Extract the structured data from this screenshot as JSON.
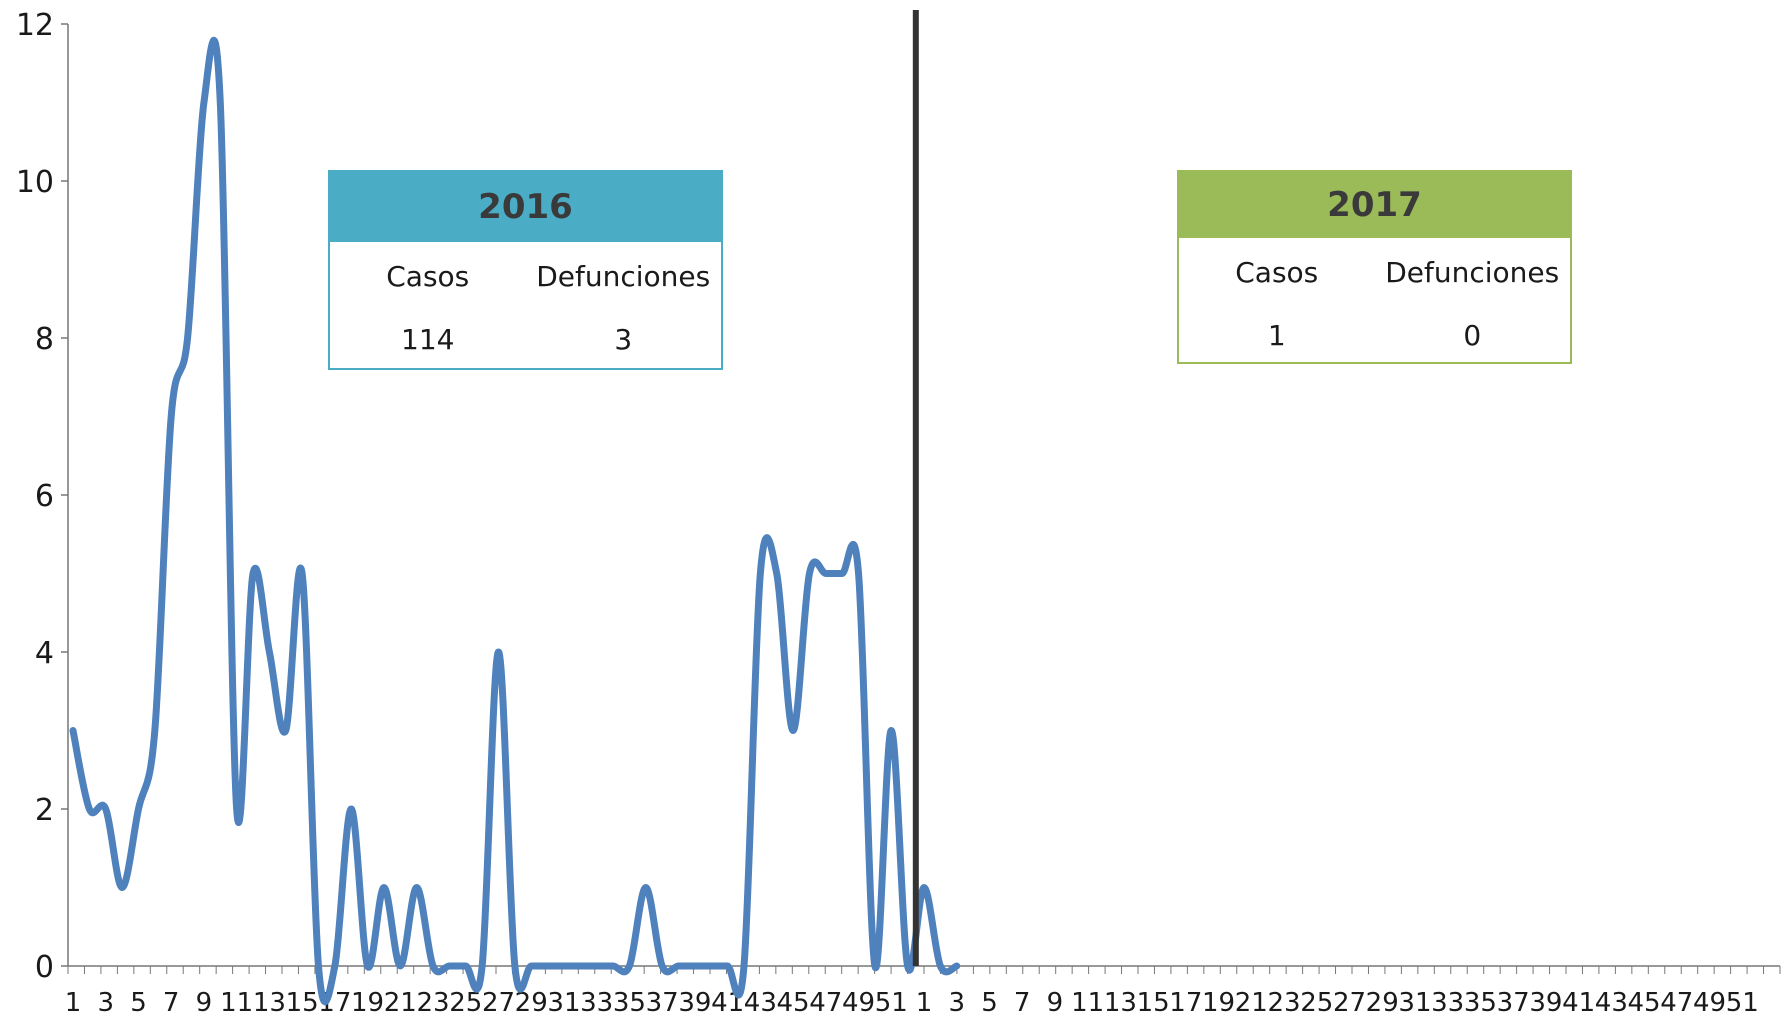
{
  "chart_data": {
    "type": "line",
    "title": "",
    "xlabel": "",
    "ylabel": "",
    "ylim": [
      0,
      12
    ],
    "yticks": [
      0,
      2,
      4,
      6,
      8,
      10,
      12
    ],
    "grid": false,
    "series_color": "#4F81BD",
    "divider_color": "#333333",
    "x": [
      "1",
      "2",
      "3",
      "4",
      "5",
      "6",
      "7",
      "8",
      "9",
      "10",
      "11",
      "12",
      "13",
      "14",
      "15",
      "16",
      "17",
      "18",
      "19",
      "20",
      "21",
      "22",
      "23",
      "24",
      "25",
      "26",
      "27",
      "28",
      "29",
      "30",
      "31",
      "32",
      "33",
      "34",
      "35",
      "36",
      "37",
      "38",
      "39",
      "40",
      "41",
      "42",
      "43",
      "44",
      "45",
      "46",
      "47",
      "48",
      "49",
      "50",
      "51",
      "52",
      "1",
      "2",
      "3"
    ],
    "x_tick_labels": [
      "1",
      "3",
      "5",
      "7",
      "9",
      "11",
      "13",
      "15",
      "17",
      "19",
      "21",
      "23",
      "25",
      "27",
      "29",
      "31",
      "33",
      "35",
      "37",
      "39",
      "41",
      "43",
      "45",
      "47",
      "49",
      "51",
      "1",
      "3",
      "5",
      "7",
      "9",
      "11",
      "13",
      "15",
      "17",
      "19",
      "21",
      "23",
      "25",
      "27",
      "29",
      "31",
      "33",
      "35",
      "37",
      "39",
      "41",
      "43",
      "45",
      "47",
      "49",
      "51"
    ],
    "series": [
      {
        "values": [
          3,
          2,
          2,
          1,
          2,
          3,
          7,
          8,
          11,
          11,
          2,
          5,
          4,
          3,
          5,
          0,
          0,
          2,
          0,
          1,
          0,
          1,
          0,
          0,
          0,
          0,
          4,
          0,
          0,
          0,
          0,
          0,
          0,
          0,
          0,
          1,
          0,
          0,
          0,
          0,
          0,
          0,
          5,
          5,
          3,
          5,
          5,
          5,
          5,
          0,
          3,
          0,
          1,
          0,
          0
        ]
      }
    ],
    "divider_after_week": 52
  },
  "panels": {
    "y2016": {
      "year": "2016",
      "casos_label": "Casos",
      "defunciones_label": "Defunciones",
      "casos_value": "114",
      "defunciones_value": "3",
      "color": "#4BACC6"
    },
    "y2017": {
      "year": "2017",
      "casos_label": "Casos",
      "defunciones_label": "Defunciones",
      "casos_value": "1",
      "defunciones_value": "0",
      "color": "#9BBB59"
    }
  }
}
